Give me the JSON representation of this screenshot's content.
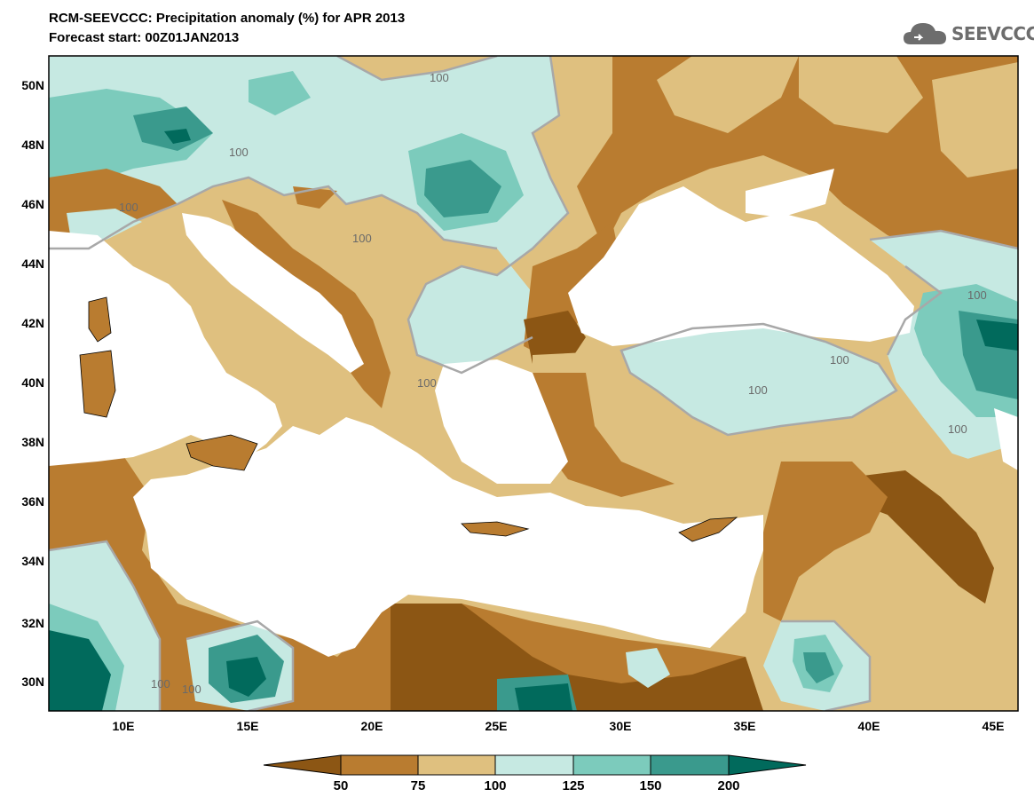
{
  "header": {
    "title": "RCM-SEEVCCC: Precipitation anomaly (%) for APR 2013",
    "subtitle": "Forecast start: 00Z01JAN2013"
  },
  "logo": {
    "text": "SEEVCCC",
    "icon": "cloud-icon"
  },
  "map": {
    "lat_range": [
      29,
      51
    ],
    "lon_range": [
      7,
      46
    ],
    "lat_ticks": [
      "50N",
      "48N",
      "46N",
      "44N",
      "42N",
      "40N",
      "38N",
      "36N",
      "34N",
      "32N",
      "30N"
    ],
    "lon_ticks": [
      "10E",
      "15E",
      "20E",
      "25E",
      "30E",
      "35E",
      "40E",
      "45E"
    ],
    "contour_label": "100"
  },
  "colorbar": {
    "ticks": [
      "50",
      "75",
      "100",
      "125",
      "150",
      "200"
    ],
    "colors": [
      "#8c5614",
      "#b97c30",
      "#dfc07f",
      "#c6e9e2",
      "#7ccbbc",
      "#3a9a8d",
      "#016a5c"
    ]
  },
  "palette": {
    "sea": "#ffffff",
    "outline": "#000000",
    "contour": "#a8a8a8"
  }
}
